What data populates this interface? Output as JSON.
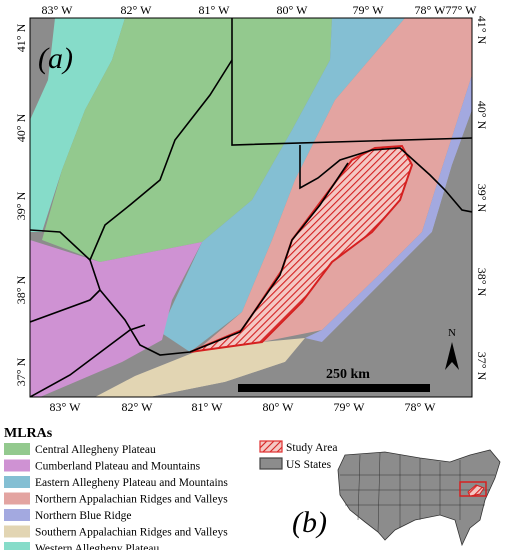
{
  "map": {
    "panel_a_label": "(a)",
    "top_longitude_labels": [
      "83° W",
      "82° W",
      "81° W",
      "80° W",
      "79° W",
      "78° W",
      "77° W"
    ],
    "bottom_longitude_labels": [
      "83° W",
      "82° W",
      "81° W",
      "80° W",
      "79° W",
      "78° W"
    ],
    "left_latitude_labels": [
      "41° N",
      "40° N",
      "39° N",
      "38° N",
      "37° N"
    ],
    "right_latitude_labels": [
      "41° N",
      "40° N",
      "39° N",
      "38° N",
      "37° N"
    ],
    "scale_bar": "250 km",
    "north_arrow": "N"
  },
  "legend": {
    "title": "MLRAs",
    "items": [
      {
        "label": "Central Allegheny Plateau",
        "color": "#93c98e"
      },
      {
        "label": "Cumberland Plateau and Mountains",
        "color": "#cf92d3"
      },
      {
        "label": "Eastern Allegheny Plateau and Mountains",
        "color": "#84bfd3"
      },
      {
        "label": "Northern Appalachian Ridges and Valleys",
        "color": "#e3a4a1"
      },
      {
        "label": "Northern Blue Ridge",
        "color": "#a3a9e0"
      },
      {
        "label": "Southern Appalachian Ridges and Valleys",
        "color": "#e2d5b3"
      },
      {
        "label": "Western Allegheny Plateau",
        "color": "#86dcc9"
      }
    ]
  },
  "inset": {
    "panel_b_label": "(b)",
    "legend": [
      {
        "label": "Study Area",
        "color": "#e03030"
      },
      {
        "label": "US States",
        "color": "#8c8c8c"
      }
    ]
  }
}
